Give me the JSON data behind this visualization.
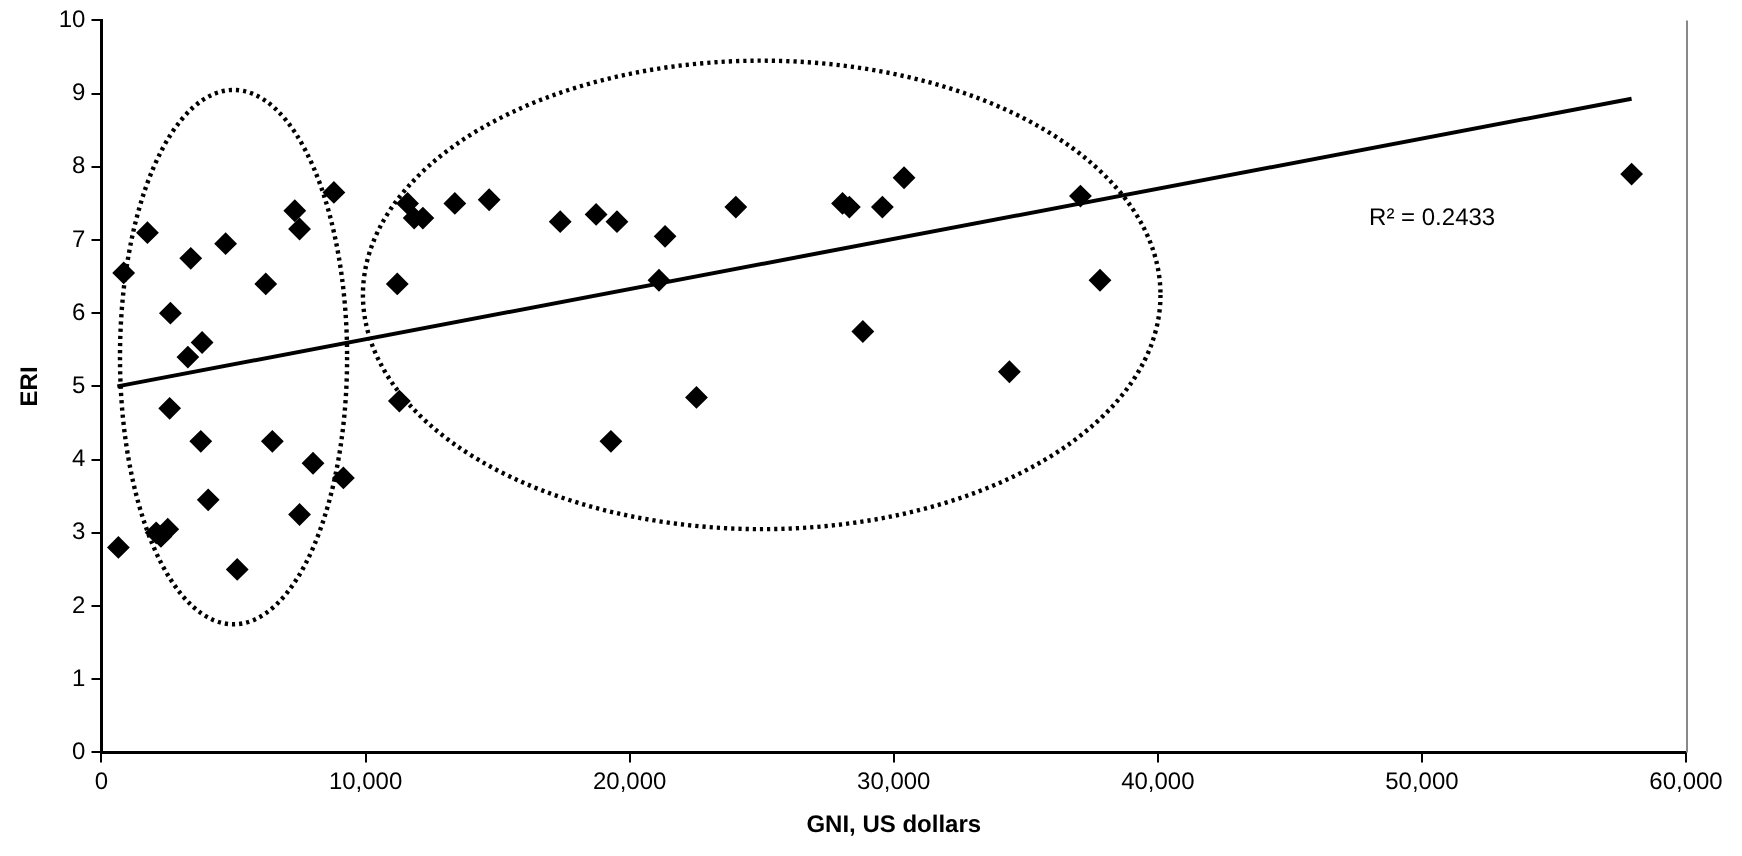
{
  "chart_data": {
    "type": "scatter",
    "xlabel": "GNI, US dollars",
    "ylabel": "ERI",
    "xlim": [
      0,
      60000
    ],
    "xticks": [
      0,
      {
        "value": 10000,
        "label": "10,000"
      },
      {
        "value": 20000,
        "label": "20,000"
      },
      {
        "value": 30000,
        "label": "30,000"
      },
      {
        "value": 40000,
        "label": "40,000"
      },
      {
        "value": 50000,
        "label": "50,000"
      },
      {
        "value": 60000,
        "label": "60,000"
      }
    ],
    "ylim": [
      0,
      10
    ],
    "yticks": [
      0,
      1,
      2,
      3,
      4,
      5,
      6,
      7,
      8,
      9,
      10
    ],
    "grid": false,
    "legend": false,
    "marker": "diamond",
    "annotations": [
      "R² = 0.2433"
    ],
    "series": [
      {
        "color": "#000000",
        "x": [
          640,
          840,
          1740,
          3380,
          4700,
          2610,
          3270,
          3810,
          6220,
          7320,
          7500,
          8800,
          2580,
          3760,
          6470,
          8010,
          9160,
          4040,
          7500,
          2070,
          2250,
          2510,
          5140,
          11200,
          11280,
          11590,
          11840,
          12170,
          13380,
          14680,
          17370,
          18730,
          19520,
          21340,
          21110,
          19290,
          22530,
          24020,
          28060,
          28320,
          29570,
          30390,
          28830,
          37070,
          37810,
          34380,
          57940
        ],
        "values": [
          2.8,
          6.55,
          7.1,
          6.75,
          6.95,
          6.0,
          5.4,
          5.6,
          6.4,
          7.4,
          7.15,
          7.65,
          4.7,
          4.25,
          4.25,
          3.95,
          3.75,
          3.45,
          3.25,
          3.0,
          2.95,
          3.05,
          2.5,
          6.4,
          4.8,
          7.5,
          7.3,
          7.3,
          7.5,
          7.55,
          7.25,
          7.35,
          7.25,
          7.05,
          6.45,
          4.25,
          4.85,
          7.45,
          7.5,
          7.45,
          7.45,
          7.85,
          5.75,
          7.6,
          6.45,
          5.2,
          7.9
        ]
      },
      {
        "type": "line",
        "color": "#000000",
        "marker": "none",
        "x": [
          600,
          57940
        ],
        "values": [
          5.0,
          8.93
        ]
      }
    ]
  }
}
